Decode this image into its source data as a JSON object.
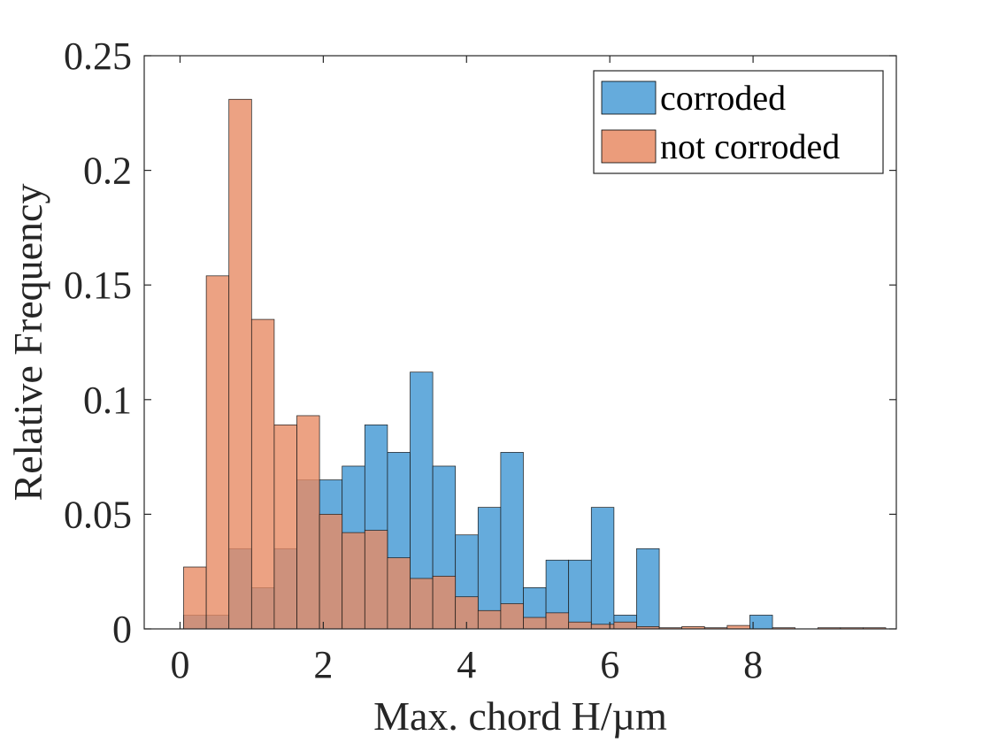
{
  "chart_data": {
    "type": "bar",
    "title": "",
    "xlabel": "Max. chord H/µm",
    "ylabel": "Relative Frequency",
    "xlim": [
      -0.5,
      10
    ],
    "ylim": [
      0,
      0.25
    ],
    "xticks": [
      0,
      2,
      4,
      6,
      8
    ],
    "yticks": [
      0,
      0.05,
      0.1,
      0.15,
      0.2,
      0.25
    ],
    "xtick_labels": [
      "0",
      "2",
      "4",
      "6",
      "8"
    ],
    "ytick_labels": [
      "0",
      "0.05",
      "0.1",
      "0.15",
      "0.2",
      "0.25"
    ],
    "grid": false,
    "legend_position": "top-right",
    "bin_start": 0.05,
    "bin_width": 0.3162,
    "series": [
      {
        "name": "corroded",
        "color": "#4A9CD6",
        "values": [
          0.006,
          0.006,
          0.035,
          0.018,
          0.035,
          0.065,
          0.065,
          0.071,
          0.089,
          0.077,
          0.112,
          0.071,
          0.041,
          0.053,
          0.077,
          0.018,
          0.03,
          0.03,
          0.053,
          0.006,
          0.035,
          0,
          0,
          0,
          0,
          0.006,
          0,
          0,
          0,
          0,
          0
        ]
      },
      {
        "name": "not corroded",
        "color": "#E78B64",
        "values": [
          0.027,
          0.154,
          0.231,
          0.135,
          0.089,
          0.093,
          0.05,
          0.042,
          0.043,
          0.031,
          0.022,
          0.023,
          0.014,
          0.008,
          0.011,
          0.005,
          0.007,
          0.003,
          0.002,
          0.003,
          0.001,
          0.0005,
          0.001,
          0.0005,
          0.0015,
          0,
          0.0005,
          0,
          0.0005,
          0.0005,
          0.0005
        ]
      }
    ]
  }
}
